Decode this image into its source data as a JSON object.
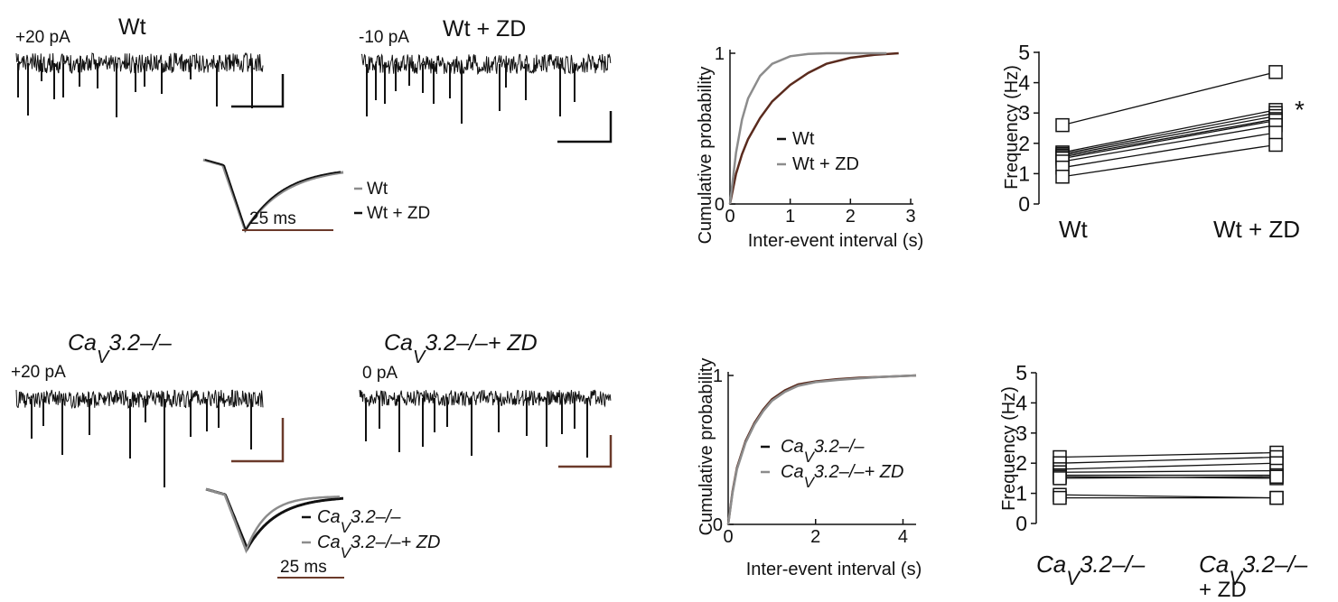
{
  "colors": {
    "wt": "#111111",
    "zd": "#8c8c8c",
    "scale_brown": "#6b3a2a",
    "accent_trace": "#5a2b1e"
  },
  "row1": {
    "trace_left": {
      "title": "Wt",
      "holding": "+20 pA"
    },
    "trace_right": {
      "title": "Wt + ZD",
      "holding": "-10 pA"
    },
    "avg_event": {
      "scale_label": "25 ms",
      "legend": [
        "Wt",
        "Wt + ZD"
      ]
    },
    "star": "*"
  },
  "row2": {
    "trace_left": {
      "title": "Ca",
      "title_sub": "V",
      "title_rest": "3.2–/–",
      "holding": "+20 pA"
    },
    "trace_right": {
      "title": "Ca",
      "title_sub": "V",
      "title_rest": "3.2–/–+ ZD",
      "holding": "0 pA"
    },
    "avg_event": {
      "scale_label": "25 ms"
    },
    "legend": [
      {
        "ca": "Ca",
        "v": "V",
        "rest": "3.2–/–"
      },
      {
        "ca": "Ca",
        "v": "V",
        "rest": "3.2–/–+ ZD"
      }
    ],
    "xcat": [
      {
        "ca": "Ca",
        "v": "V",
        "rest": "3.2–/–"
      },
      {
        "ca": "Ca",
        "v": "V",
        "rest": "3.2–/–",
        "line2": "+ ZD"
      }
    ]
  },
  "chart_data": [
    {
      "type": "line",
      "xlabel": "Inter-event interval (s)",
      "ylabel": "Cumulative probability",
      "xlim": [
        0,
        3
      ],
      "ylim": [
        0,
        1
      ],
      "xticks": [
        "0",
        "1",
        "2",
        "3"
      ],
      "yticks": [
        "0",
        "1"
      ],
      "series": [
        {
          "name": "Wt",
          "x": [
            0,
            0.1,
            0.2,
            0.3,
            0.5,
            0.7,
            1.0,
            1.3,
            1.6,
            2.0,
            2.4,
            2.8
          ],
          "y": [
            0,
            0.2,
            0.33,
            0.43,
            0.57,
            0.68,
            0.79,
            0.87,
            0.93,
            0.97,
            0.99,
            1.0
          ]
        },
        {
          "name": "Wt + ZD",
          "x": [
            0,
            0.1,
            0.2,
            0.3,
            0.5,
            0.7,
            1.0,
            1.3,
            1.6,
            2.0,
            2.6
          ],
          "y": [
            0,
            0.34,
            0.56,
            0.7,
            0.85,
            0.93,
            0.98,
            0.995,
            1.0,
            1.0,
            1.0
          ]
        }
      ]
    },
    {
      "type": "line",
      "xlabel": "Frequency (Hz)",
      "ylabel": "",
      "categories": [
        "Wt",
        "Wt + ZD"
      ],
      "ylim": [
        0,
        5
      ],
      "yticks": [
        "0",
        "1",
        "2",
        "3",
        "4",
        "5"
      ],
      "series": [
        {
          "values": [
            2.6,
            4.35
          ]
        },
        {
          "values": [
            1.7,
            3.1
          ]
        },
        {
          "values": [
            1.65,
            3.0
          ]
        },
        {
          "values": [
            1.6,
            2.9
          ]
        },
        {
          "values": [
            1.55,
            2.8
          ]
        },
        {
          "values": [
            1.5,
            2.75
          ]
        },
        {
          "values": [
            1.4,
            2.6
          ]
        },
        {
          "values": [
            1.2,
            2.35
          ]
        },
        {
          "values": [
            0.9,
            1.95
          ]
        }
      ]
    },
    {
      "type": "line",
      "xlabel": "Inter-event interval (s)",
      "ylabel": "Cumulative probability",
      "xlim": [
        0,
        4.3
      ],
      "ylim": [
        0,
        1
      ],
      "xticks": [
        "0",
        "2",
        "4"
      ],
      "yticks": [
        "0",
        "1"
      ],
      "series": [
        {
          "name": "Cav3.2–/–",
          "x": [
            0,
            0.1,
            0.2,
            0.4,
            0.6,
            0.8,
            1.0,
            1.3,
            1.6,
            2.0,
            2.5,
            3.0,
            3.5,
            4.3
          ],
          "y": [
            0,
            0.22,
            0.38,
            0.56,
            0.68,
            0.77,
            0.84,
            0.9,
            0.94,
            0.96,
            0.975,
            0.985,
            0.99,
            1.0
          ]
        },
        {
          "name": "Cav3.2–/–+ ZD",
          "x": [
            0,
            0.1,
            0.2,
            0.4,
            0.6,
            0.8,
            1.0,
            1.3,
            1.6,
            2.0,
            2.5,
            3.0,
            3.5,
            4.3
          ],
          "y": [
            0,
            0.21,
            0.37,
            0.55,
            0.67,
            0.76,
            0.83,
            0.89,
            0.93,
            0.955,
            0.97,
            0.98,
            0.99,
            1.0
          ]
        }
      ]
    },
    {
      "type": "line",
      "xlabel": "Frequency (Hz)",
      "ylabel": "",
      "categories": [
        "Cav3.2–/–",
        "Cav3.2–/– + ZD"
      ],
      "ylim": [
        0,
        5
      ],
      "yticks": [
        "0",
        "1",
        "2",
        "3",
        "4",
        "5"
      ],
      "series": [
        {
          "values": [
            2.2,
            2.35
          ]
        },
        {
          "values": [
            2.0,
            2.2
          ]
        },
        {
          "values": [
            1.8,
            2.0
          ]
        },
        {
          "values": [
            1.7,
            1.75
          ]
        },
        {
          "values": [
            1.6,
            1.6
          ]
        },
        {
          "values": [
            1.55,
            1.5
          ]
        },
        {
          "values": [
            1.5,
            1.55
          ]
        },
        {
          "values": [
            0.95,
            0.85
          ]
        },
        {
          "values": [
            0.85,
            0.85
          ]
        }
      ]
    }
  ]
}
